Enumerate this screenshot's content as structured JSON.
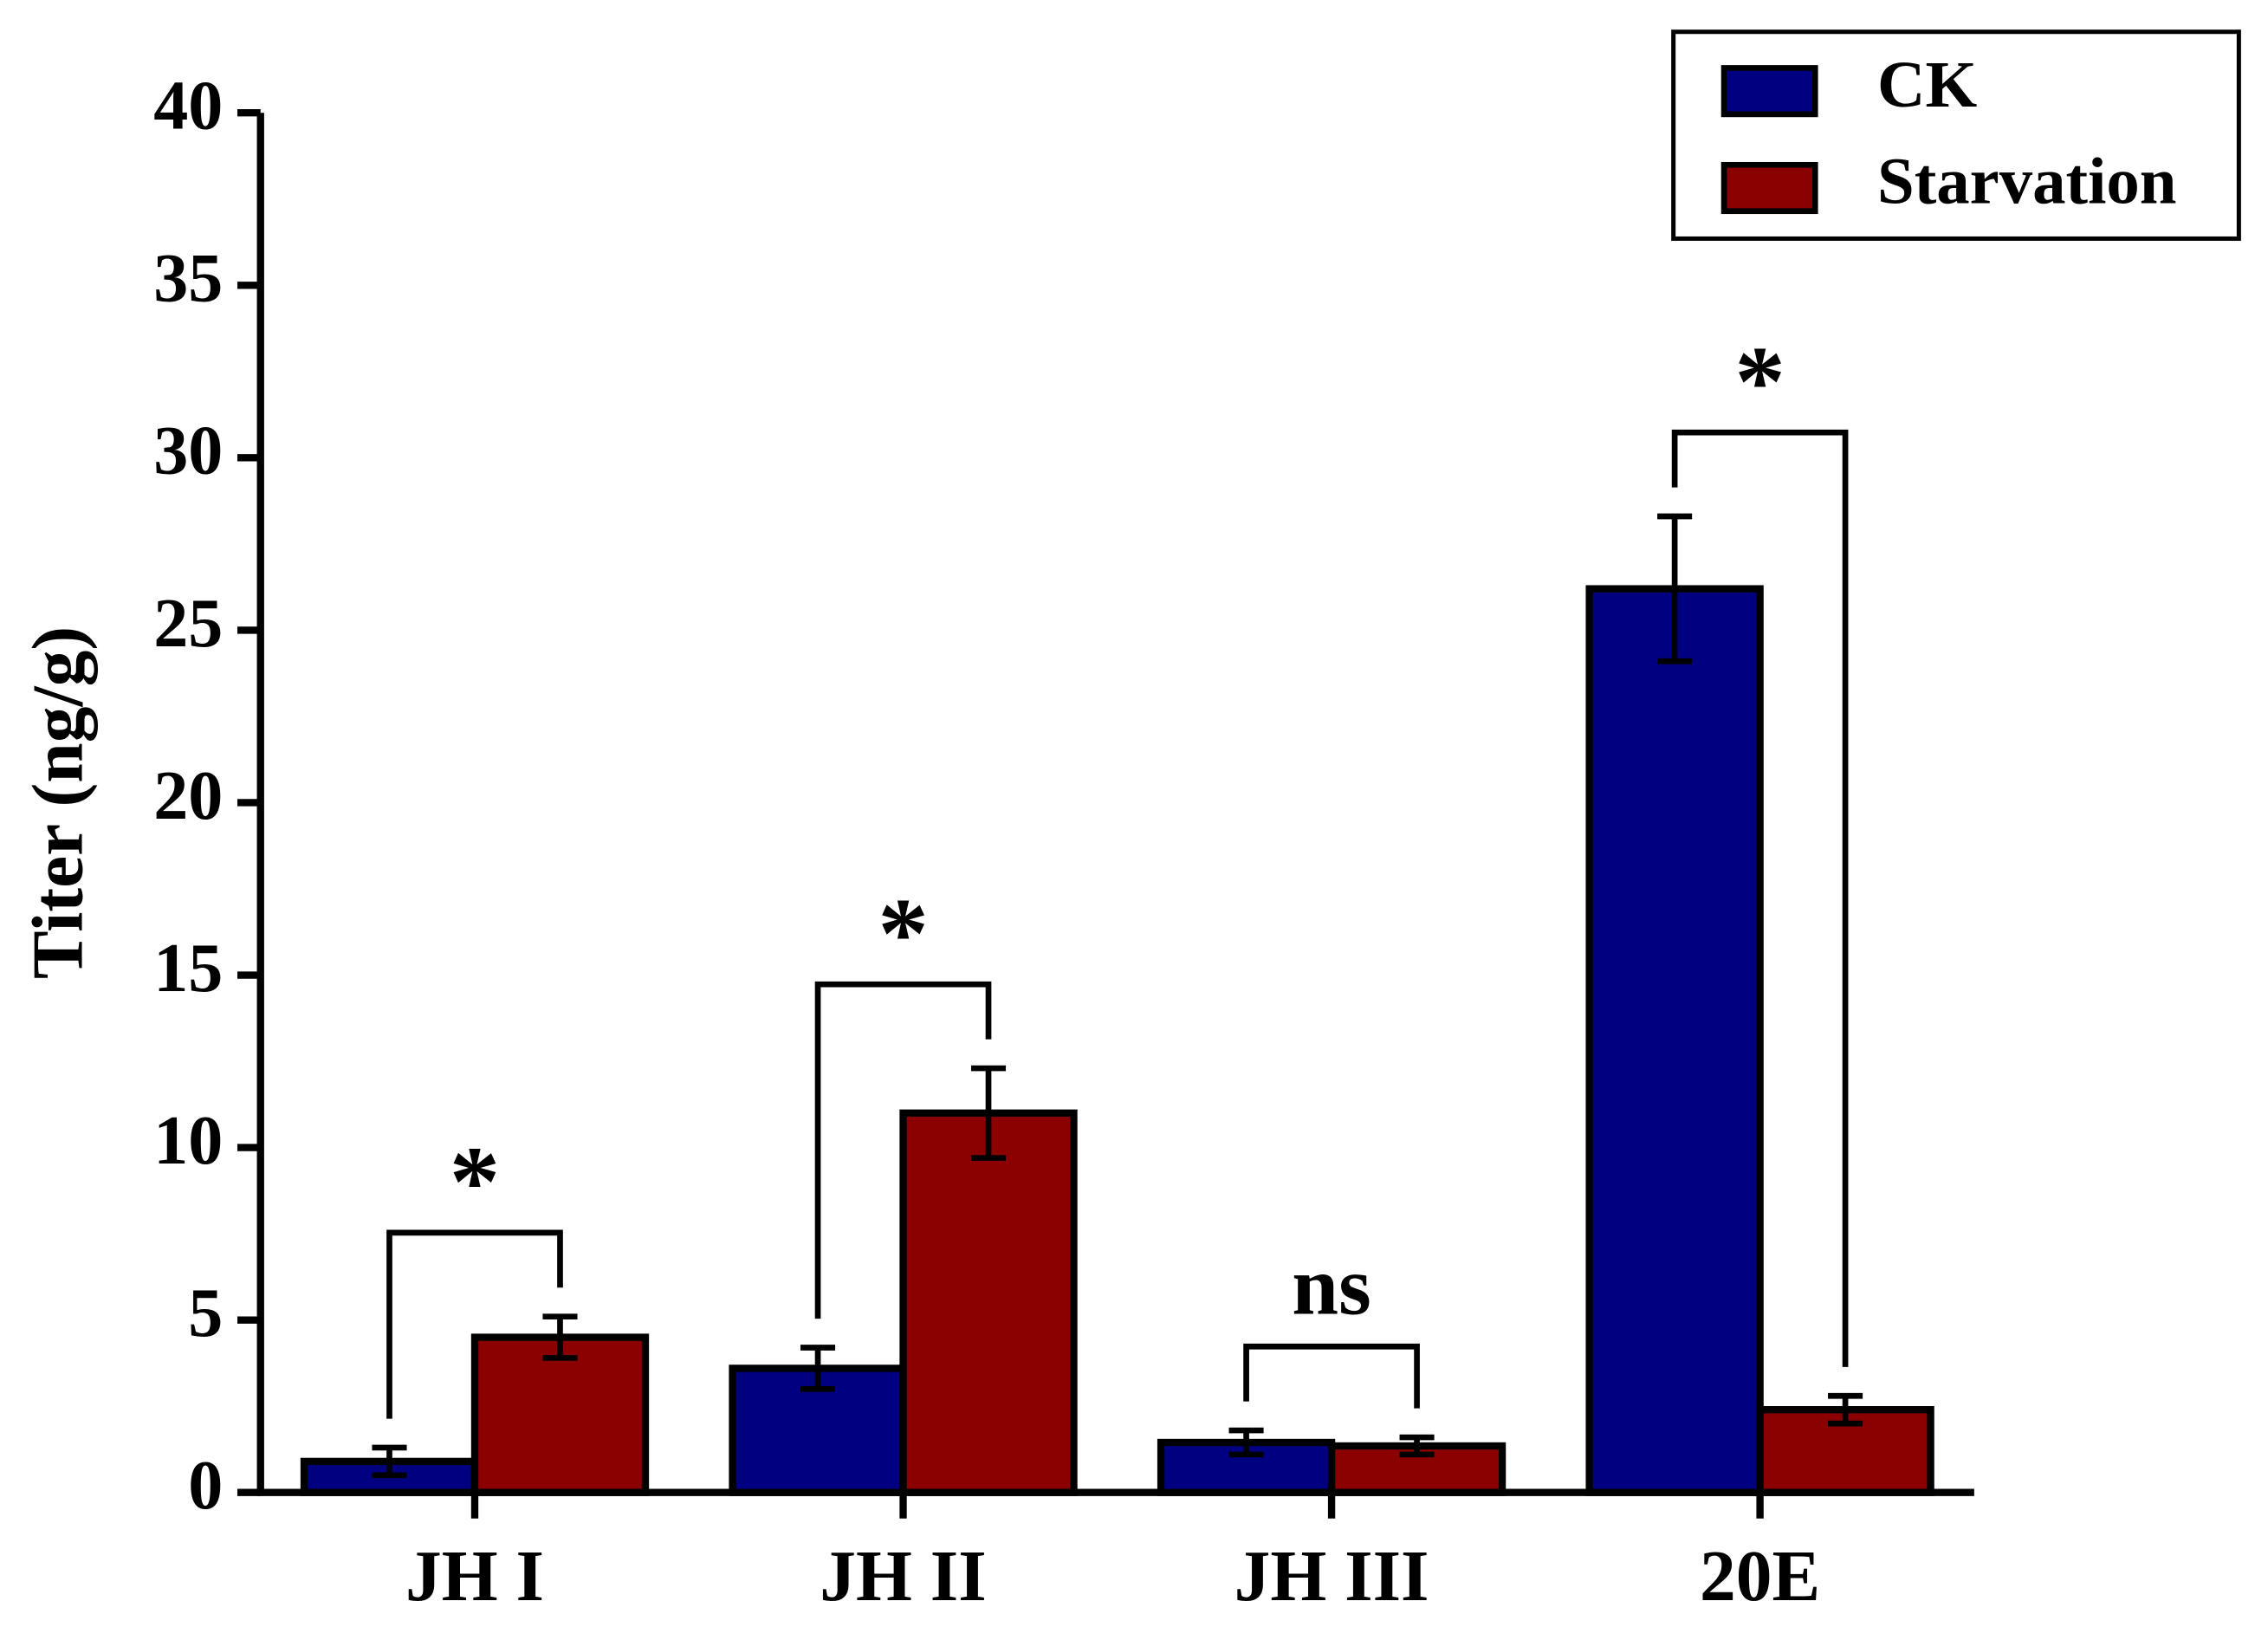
{
  "chart_data": {
    "type": "bar",
    "y_label": "Titer (ng/g)",
    "categories": [
      "JH I",
      "JH II",
      "JH III",
      "20E"
    ],
    "series": [
      {
        "name": "CK",
        "color": "#000080",
        "values": [
          0.9,
          3.6,
          1.45,
          26.2
        ],
        "errors": [
          0.4,
          0.6,
          0.35,
          2.1
        ]
      },
      {
        "name": "Starvation",
        "color": "#8b0000",
        "values": [
          4.5,
          11.0,
          1.35,
          2.4
        ],
        "errors": [
          0.6,
          1.3,
          0.25,
          0.4
        ]
      }
    ],
    "annotations": [
      "*",
      "*",
      "ns",
      "*"
    ],
    "ylim": [
      0,
      40
    ],
    "yticks": [
      0,
      5,
      10,
      15,
      20,
      25,
      30,
      35,
      40
    ],
    "legend": "top-right"
  }
}
